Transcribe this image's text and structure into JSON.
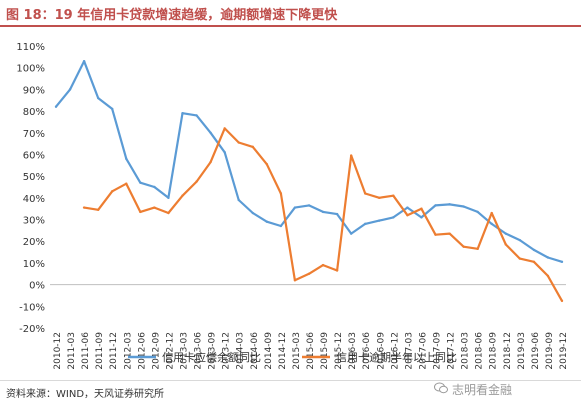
{
  "header": {
    "title": "图 18：19 年信用卡贷款增速趋缓，逾期额增速下降更快"
  },
  "footer": {
    "source": "资料来源：WIND，天风证券研究所",
    "watermark": "志明看金融"
  },
  "chart_data": {
    "type": "line",
    "title": "",
    "xlabel": "",
    "ylabel": "",
    "ylim": [
      -0.2,
      1.1
    ],
    "y_ticks": [
      "110%",
      "100%",
      "90%",
      "80%",
      "70%",
      "60%",
      "50%",
      "40%",
      "30%",
      "20%",
      "10%",
      "0%",
      "-10%",
      "-20%"
    ],
    "y_tick_values": [
      1.1,
      1.0,
      0.9,
      0.8,
      0.7,
      0.6,
      0.5,
      0.4,
      0.3,
      0.2,
      0.1,
      0.0,
      -0.1,
      -0.2
    ],
    "grid": false,
    "legend_position": "bottom",
    "categories": [
      "2010-12",
      "2011-03",
      "2011-06",
      "2011-09",
      "2011-12",
      "2012-03",
      "2012-06",
      "2012-09",
      "2012-12",
      "2013-03",
      "2013-06",
      "2013-09",
      "2013-12",
      "2014-03",
      "2014-06",
      "2014-09",
      "2014-12",
      "2015-03",
      "2015-06",
      "2015-09",
      "2015-12",
      "2016-03",
      "2016-06",
      "2016-09",
      "2016-12",
      "2017-03",
      "2017-06",
      "2017-09",
      "2017-12",
      "2018-03",
      "2018-06",
      "2018-09",
      "2018-12",
      "2019-03",
      "2019-06",
      "2019-09",
      "2019-12"
    ],
    "series": [
      {
        "name": "信用卡应偿余额同比",
        "color": "#5b9bd5",
        "values": [
          0.82,
          0.9,
          1.03,
          0.86,
          0.81,
          0.58,
          0.47,
          0.45,
          0.4,
          0.79,
          0.78,
          0.7,
          0.61,
          0.39,
          0.33,
          0.29,
          0.27,
          0.355,
          0.365,
          0.335,
          0.325,
          0.235,
          0.28,
          0.295,
          0.31,
          0.355,
          0.31,
          0.365,
          0.37,
          0.36,
          0.335,
          0.28,
          0.235,
          0.205,
          0.16,
          0.125,
          0.105
        ]
      },
      {
        "name": "信用卡逾期半年以上同比",
        "color": "#ed7d31",
        "values": [
          null,
          null,
          0.355,
          0.345,
          0.43,
          0.465,
          0.335,
          0.355,
          0.33,
          0.41,
          0.475,
          0.565,
          0.72,
          0.655,
          0.635,
          0.555,
          0.42,
          0.02,
          0.05,
          0.09,
          0.065,
          0.595,
          0.42,
          0.4,
          0.41,
          0.32,
          0.35,
          0.23,
          0.235,
          0.175,
          0.165,
          0.33,
          0.185,
          0.12,
          0.105,
          0.04,
          -0.075
        ]
      }
    ]
  }
}
